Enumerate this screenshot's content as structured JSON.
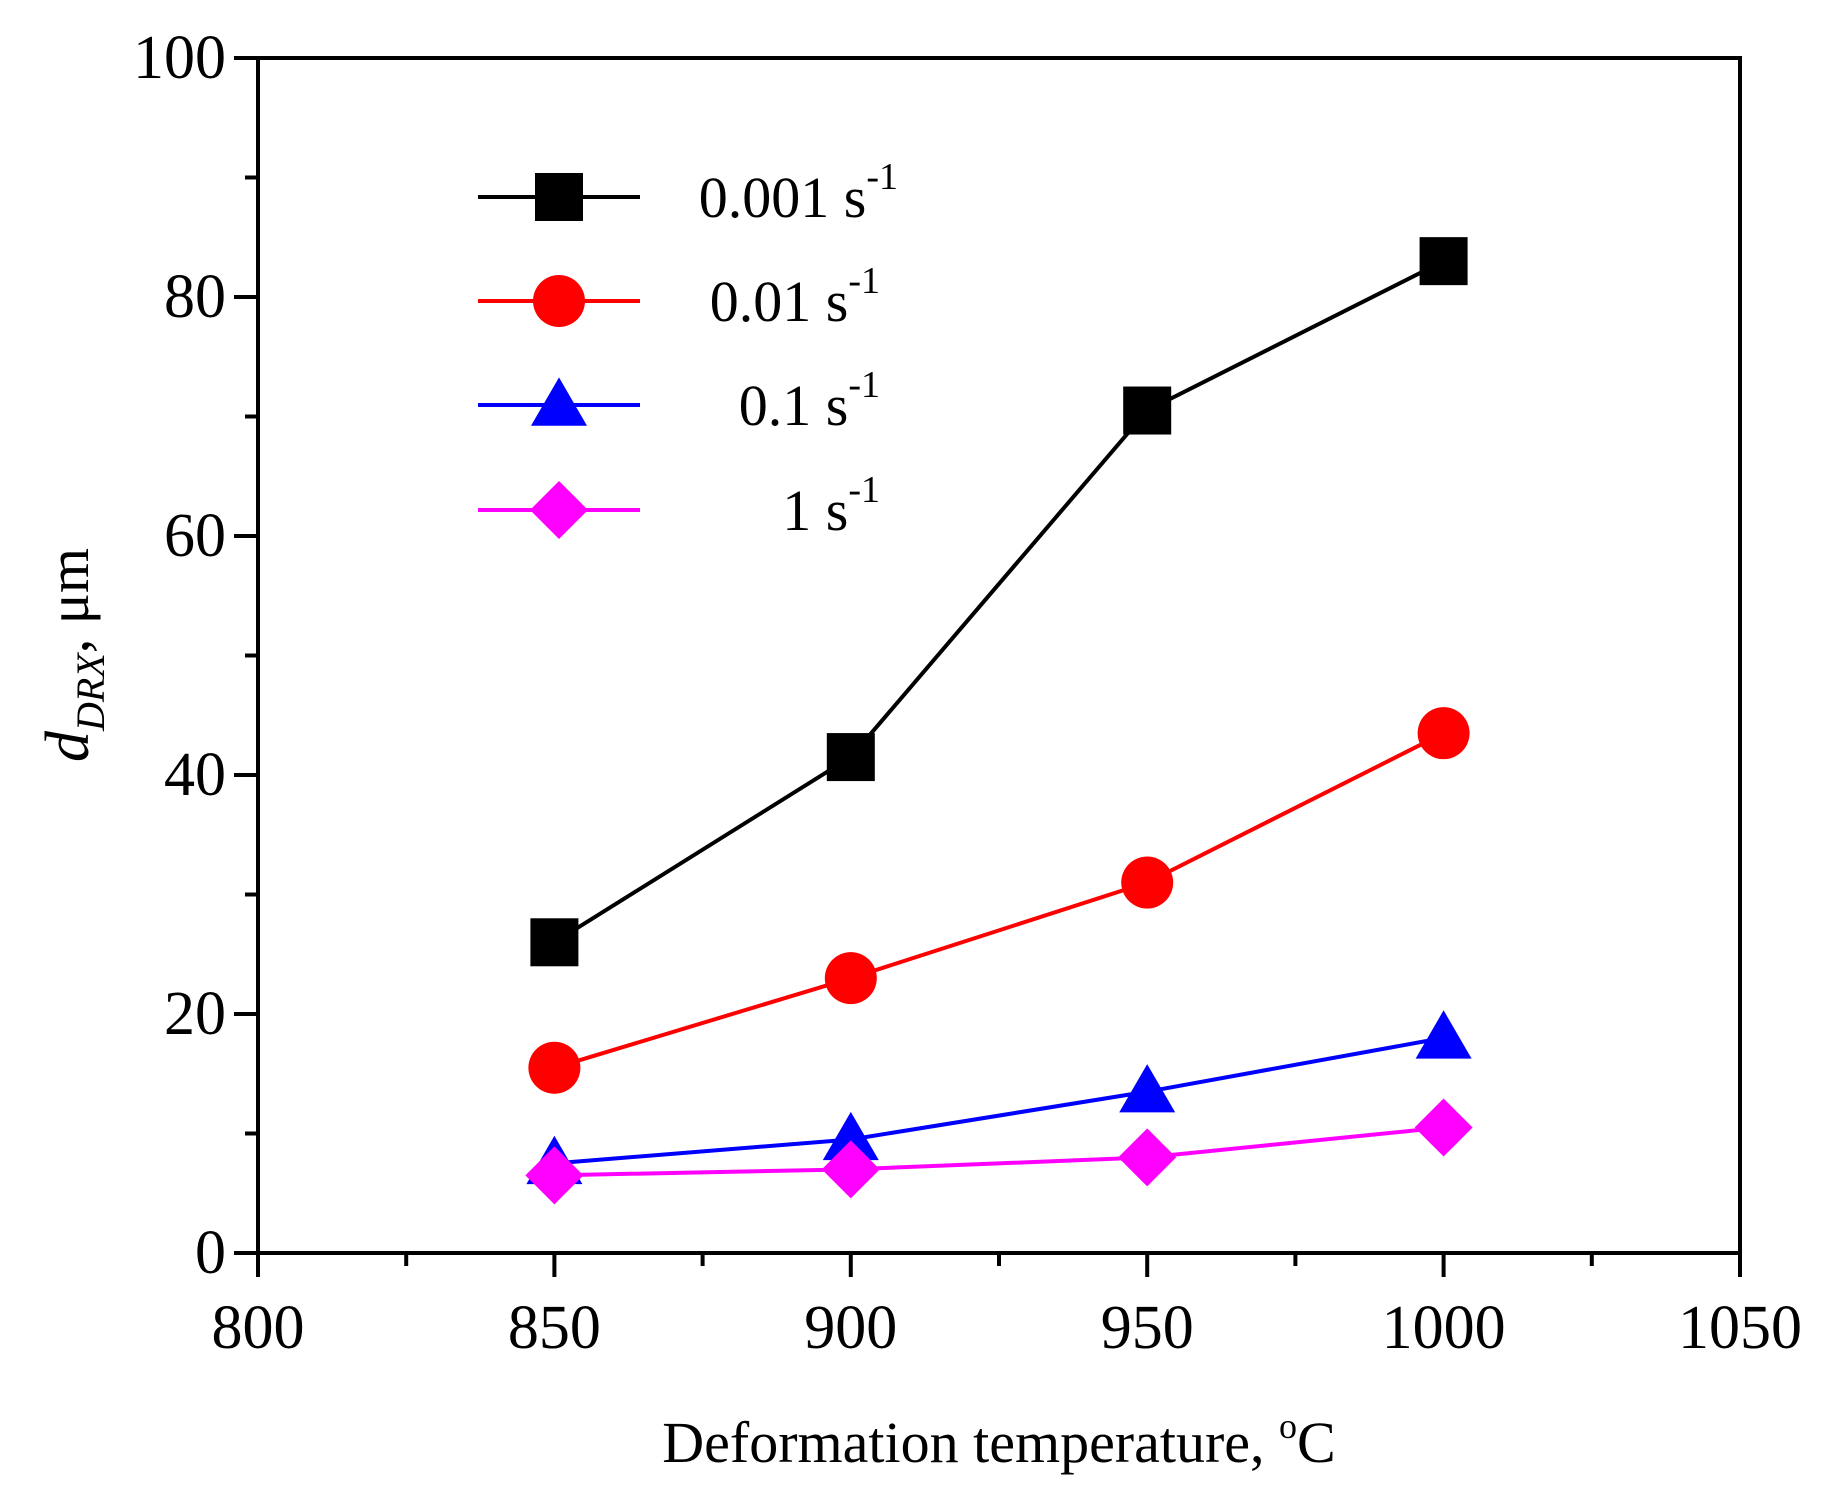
{
  "chart_data": {
    "type": "line",
    "title": "",
    "xlabel": {
      "main": "Deformation temperature, ",
      "degree": "o",
      "unit": "C"
    },
    "ylabel": {
      "symbol": "d",
      "subscript": "DRX",
      "unit": ", μm"
    },
    "xlim": [
      800,
      1050
    ],
    "ylim": [
      0,
      100
    ],
    "xticks": [
      800,
      850,
      900,
      950,
      1000,
      1050
    ],
    "yticks": [
      0,
      20,
      40,
      60,
      80,
      100
    ],
    "x": [
      850,
      900,
      950,
      1000
    ],
    "legend_position": "top-left",
    "series": [
      {
        "name": "0.001",
        "unit": "s",
        "exponent": "-1",
        "marker": "square",
        "color": "#000000",
        "values": [
          26,
          41.5,
          70.5,
          83
        ]
      },
      {
        "name": "0.01",
        "unit": "s",
        "exponent": "-1",
        "marker": "circle",
        "color": "#ff0000",
        "values": [
          15.5,
          23,
          31,
          43.5
        ]
      },
      {
        "name": "0.1",
        "unit": "s",
        "exponent": "-1",
        "marker": "triangle",
        "color": "#0000ff",
        "values": [
          7.5,
          9.5,
          13.5,
          18
        ]
      },
      {
        "name": "1",
        "unit": "s",
        "exponent": "-1",
        "marker": "diamond",
        "color": "#ff00ff",
        "values": [
          6.5,
          7,
          8,
          10.5
        ]
      }
    ]
  }
}
